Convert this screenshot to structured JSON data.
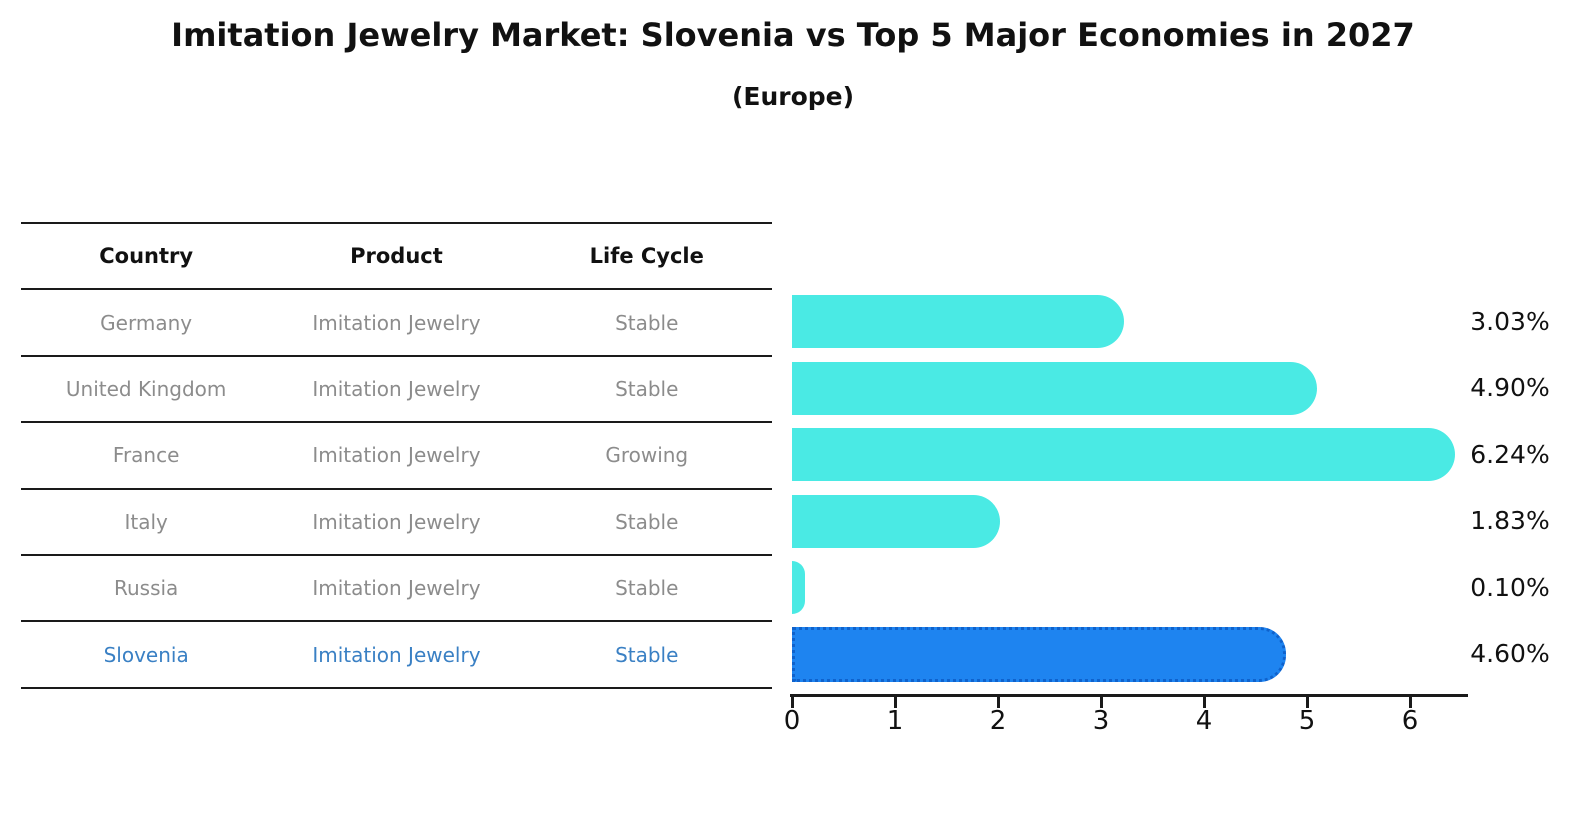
{
  "header": {
    "title": "Imitation Jewelry Market: Slovenia vs Top 5 Major Economies in 2027",
    "subtitle": "(Europe)"
  },
  "table": {
    "columns": {
      "country": "Country",
      "product": "Product",
      "life_cycle": "Life Cycle"
    },
    "rows": [
      {
        "country": "Germany",
        "product": "Imitation Jewelry",
        "life_cycle": "Stable",
        "highlight": false
      },
      {
        "country": "United Kingdom",
        "product": "Imitation Jewelry",
        "life_cycle": "Stable",
        "highlight": false
      },
      {
        "country": "France",
        "product": "Imitation Jewelry",
        "life_cycle": "Growing",
        "highlight": false
      },
      {
        "country": "Italy",
        "product": "Imitation Jewelry",
        "life_cycle": "Stable",
        "highlight": false
      },
      {
        "country": "Russia",
        "product": "Imitation Jewelry",
        "life_cycle": "Stable",
        "highlight": false
      },
      {
        "country": "Slovenia",
        "product": "Imitation Jewelry",
        "life_cycle": "Stable",
        "highlight": true
      }
    ]
  },
  "chart_data": {
    "type": "bar",
    "orientation": "horizontal",
    "title": "Imitation Jewelry Market: Slovenia vs Top 5 Major Economies in 2027 (Europe)",
    "categories": [
      "Germany",
      "United Kingdom",
      "France",
      "Italy",
      "Russia",
      "Slovenia"
    ],
    "values": [
      3.03,
      4.9,
      6.24,
      1.83,
      0.1,
      4.6
    ],
    "labels": [
      "3.03%",
      "4.90%",
      "6.24%",
      "1.83%",
      "0.10%",
      "4.60%"
    ],
    "unit": "%",
    "xticks": [
      "0",
      "1",
      "2",
      "3",
      "4",
      "5",
      "6"
    ],
    "xlim": [
      0,
      6.55
    ],
    "grid": false,
    "legend": false,
    "highlight_index": 5,
    "colors": {
      "bar": "#4AEAE4",
      "highlight_bar": "#1E84F0",
      "highlight_border": "#0F62CC",
      "highlight_text": "#3A80C4",
      "cell_text": "#8C8C8C",
      "line": "#1A1A1A"
    }
  }
}
